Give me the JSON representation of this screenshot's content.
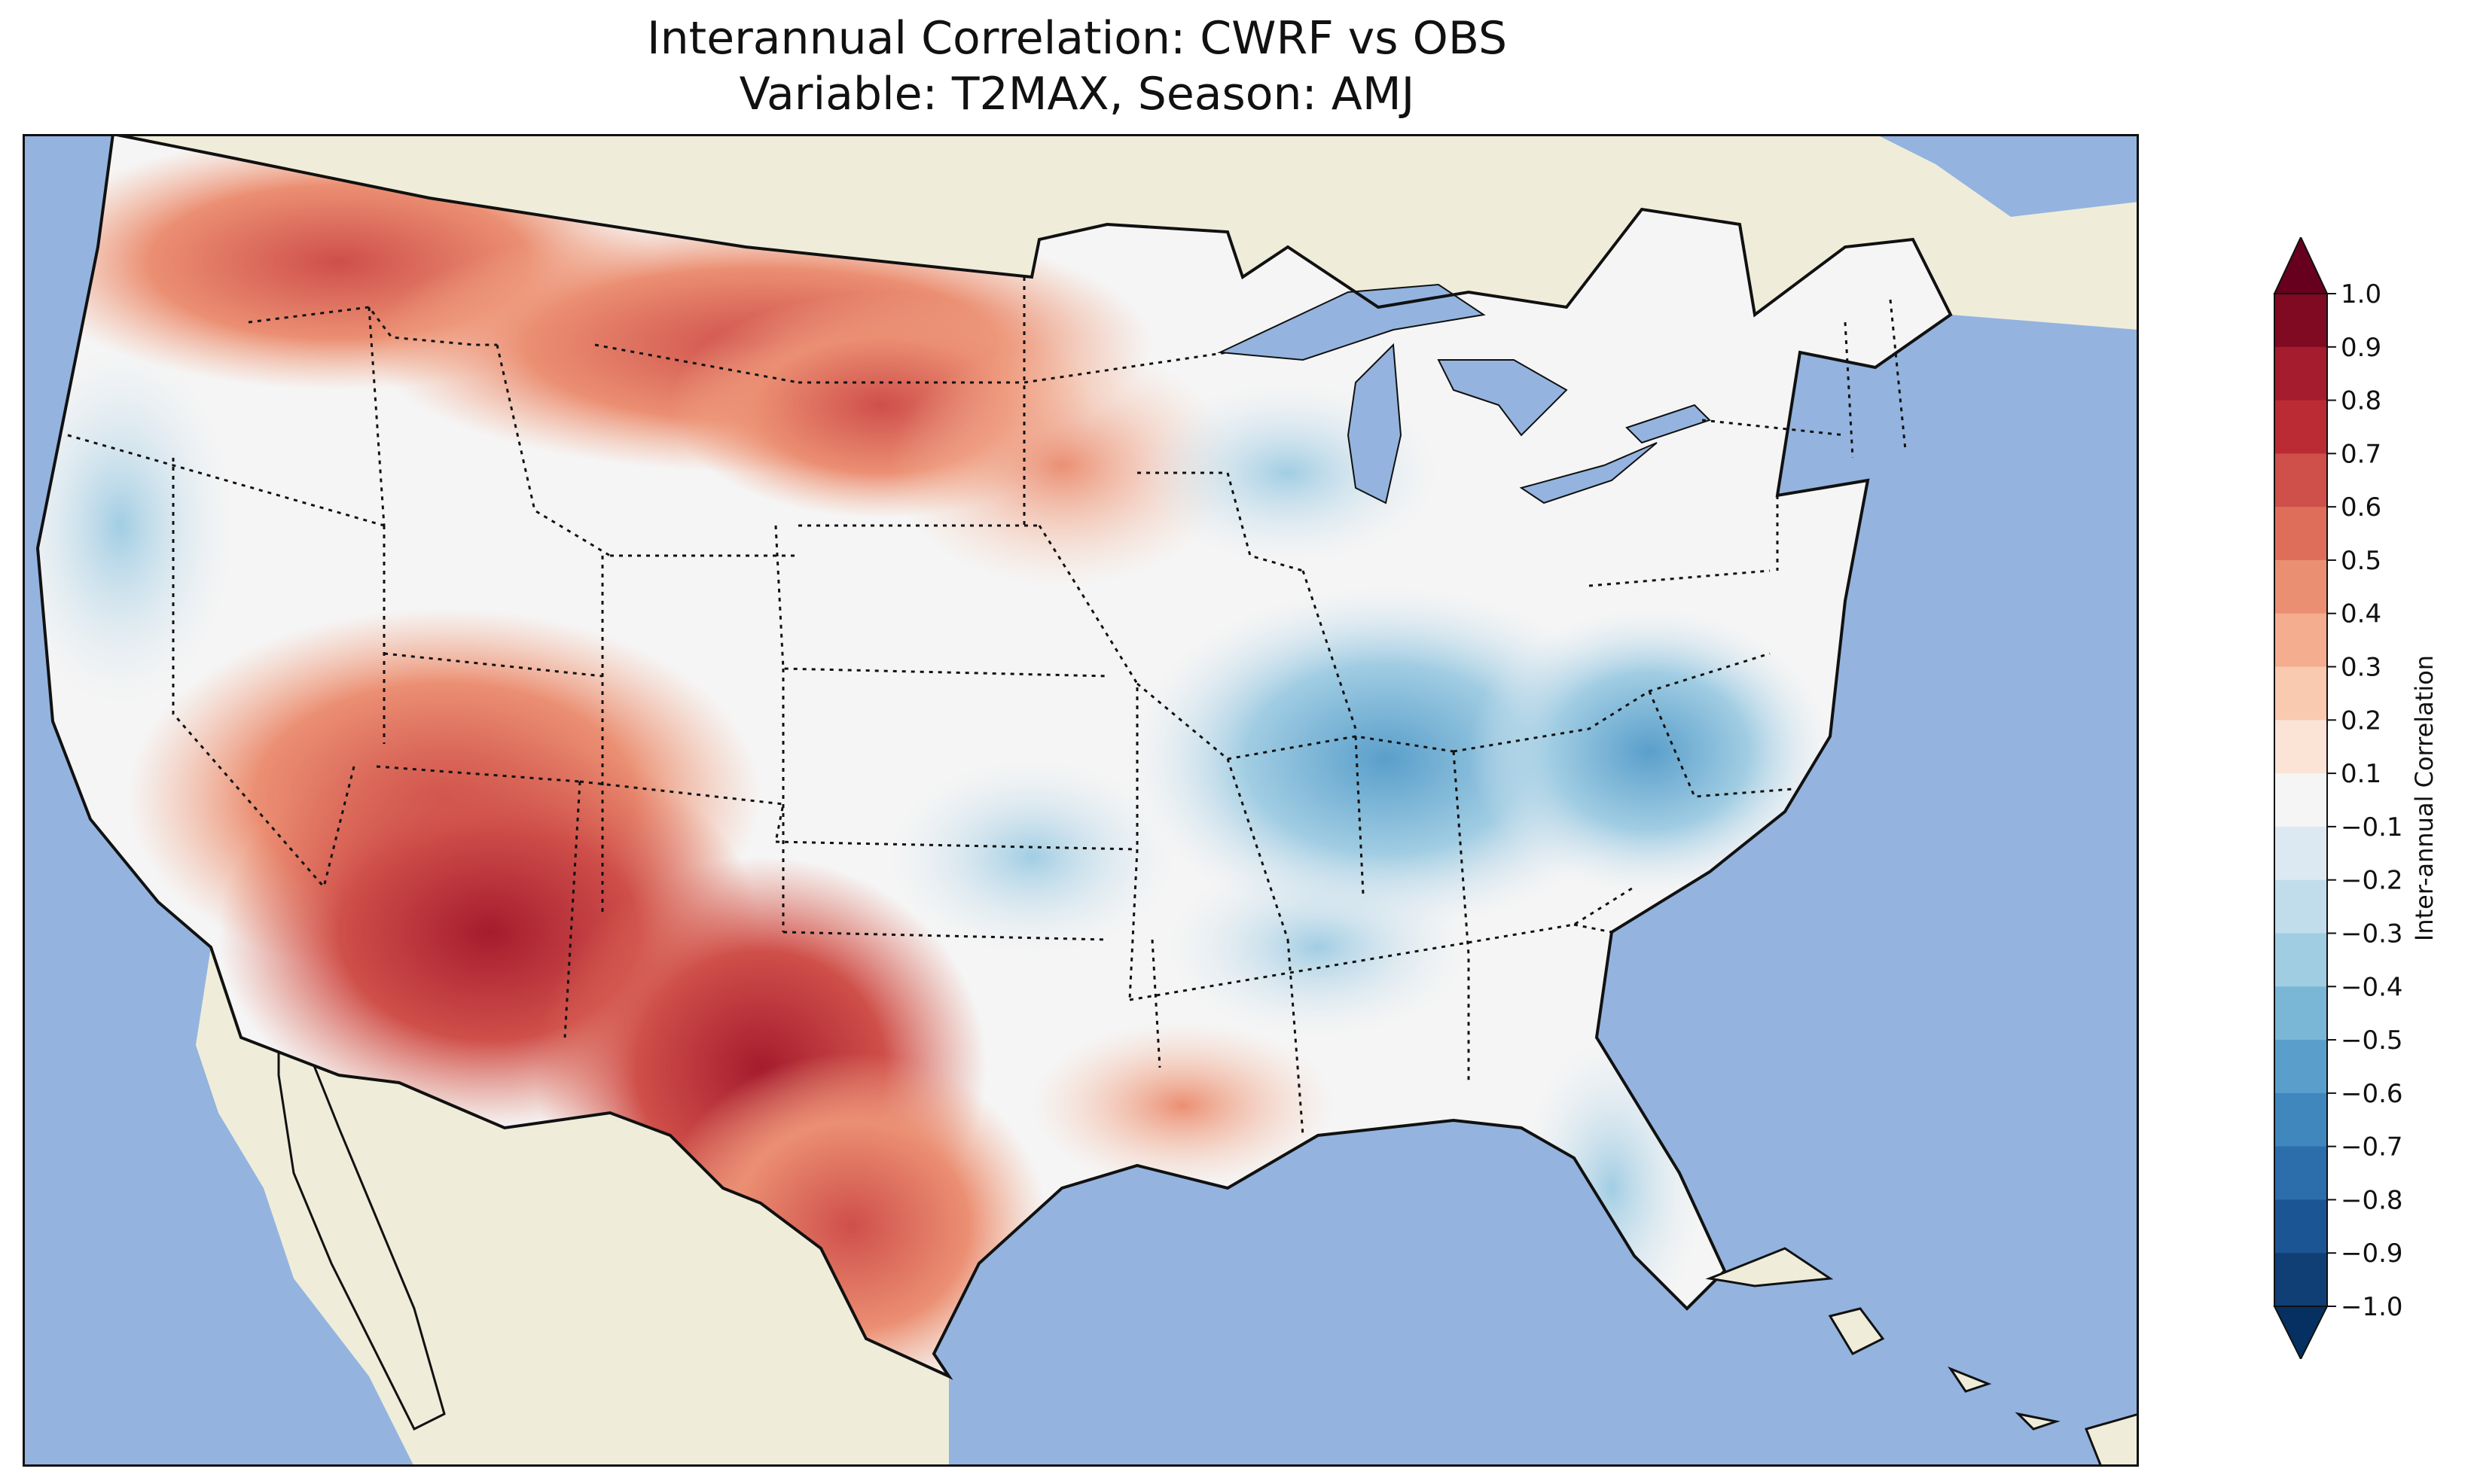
{
  "title": {
    "line1": "Interannual Correlation: CWRF vs OBS",
    "line2": "Variable: T2MAX, Season: AMJ"
  },
  "colors": {
    "ocean": "#94b4df",
    "land": "#efedda",
    "border": "#111111"
  },
  "map": {
    "region": "Contiguous United States",
    "field": "T2MAX interannual correlation (CWRF vs OBS), AMJ",
    "state_borders": "dotted",
    "country_borders": "solid",
    "coastlines": true,
    "lakes_visible": true
  },
  "colorbar": {
    "label": "Inter-annual Correlation",
    "ticks": [
      "1.0",
      "0.9",
      "0.8",
      "0.7",
      "0.6",
      "0.5",
      "0.4",
      "0.3",
      "0.2",
      "0.1",
      "−0.1",
      "−0.2",
      "−0.3",
      "−0.4",
      "−0.5",
      "−0.6",
      "−0.7",
      "−0.8",
      "−0.9",
      "−1.0"
    ],
    "colormap": "RdBu_r",
    "extend": "both",
    "band_colors": [
      "#67001f",
      "#7f0a21",
      "#a51c2e",
      "#bb2b34",
      "#cf4f4a",
      "#de6e5a",
      "#eb8f73",
      "#f4ad8e",
      "#f9c9b0",
      "#fbe3d6",
      "#f5f5f5",
      "#dde9f2",
      "#c1ddec",
      "#a1cde3",
      "#7ab6d6",
      "#5a9fcb",
      "#3f87bd",
      "#2c6dab",
      "#1c5594",
      "#0f3f75",
      "#053061"
    ]
  }
}
